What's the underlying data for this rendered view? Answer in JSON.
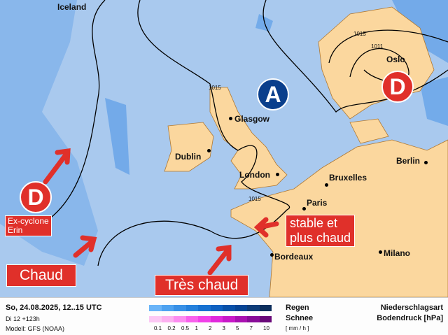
{
  "map": {
    "cities": [
      {
        "name": "Iceland"
      },
      {
        "name": "Oslo"
      },
      {
        "name": "Glasgow"
      },
      {
        "name": "Dublin"
      },
      {
        "name": "London"
      },
      {
        "name": "Bruxelles"
      },
      {
        "name": "Berlin"
      },
      {
        "name": "Paris"
      },
      {
        "name": "Bordeaux"
      },
      {
        "name": "Milano"
      }
    ],
    "isobar_labels": [
      "1015",
      "1015",
      "1011",
      "1015"
    ],
    "pressure_systems": [
      {
        "letter": "A",
        "color": "#0a3f8c"
      },
      {
        "letter": "D",
        "color": "#e0302a"
      },
      {
        "letter": "D",
        "color": "#e0302a"
      }
    ],
    "annotations": {
      "ex_cyclone": "Ex-cyclone\nErin",
      "chaud": "Chaud",
      "tres_chaud": "Très chaud",
      "stable": "stable et\nplus chaud"
    }
  },
  "legend": {
    "date": "So, 24.08.2025, 12..15 UTC",
    "run": "Di 12 +123h",
    "model": "Modell: GFS (NOAA)",
    "rain_label": "Regen",
    "snow_label": "Schnee",
    "unit": "[ mm / h ]",
    "ticks": [
      "0.1",
      "0.2",
      "0.5",
      "1",
      "2",
      "3",
      "5",
      "7",
      "10"
    ],
    "title1": "Niederschlagsart",
    "title2": "Bodendruck [hPa]",
    "rain_colors": [
      "#6ab4f8",
      "#4ea2f0",
      "#3890e6",
      "#2480dc",
      "#1670d0",
      "#0e60c0",
      "#0850a8",
      "#064494",
      "#0e3c78",
      "#0c2e5c"
    ],
    "snow_colors": [
      "#fcc8f4",
      "#fcb0f0",
      "#fc8cf0",
      "#f860ec",
      "#f040e8",
      "#e028dc",
      "#c818c8",
      "#a810b0",
      "#880c98",
      "#680878"
    ]
  }
}
